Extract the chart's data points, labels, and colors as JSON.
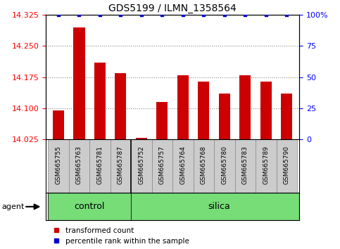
{
  "title": "GDS5199 / ILMN_1358564",
  "samples": [
    "GSM665755",
    "GSM665763",
    "GSM665781",
    "GSM665787",
    "GSM665752",
    "GSM665757",
    "GSM665764",
    "GSM665768",
    "GSM665780",
    "GSM665783",
    "GSM665789",
    "GSM665790"
  ],
  "red_values": [
    14.095,
    14.295,
    14.21,
    14.185,
    14.028,
    14.115,
    14.18,
    14.165,
    14.135,
    14.18,
    14.165,
    14.135
  ],
  "blue_values": [
    100,
    100,
    100,
    100,
    100,
    100,
    100,
    100,
    100,
    100,
    100,
    100
  ],
  "ylim_left": [
    14.025,
    14.325
  ],
  "ylim_right": [
    0,
    100
  ],
  "yticks_left": [
    14.025,
    14.1,
    14.175,
    14.25,
    14.325
  ],
  "yticks_right": [
    0,
    25,
    50,
    75,
    100
  ],
  "bar_color": "#cc0000",
  "dot_color": "#0000cc",
  "background_color": "#ffffff",
  "grid_color": "#888888",
  "tick_label_bg": "#cccccc",
  "group_divider": 4,
  "legend_items": [
    {
      "label": "transformed count",
      "color": "#cc0000"
    },
    {
      "label": "percentile rank within the sample",
      "color": "#0000cc"
    }
  ]
}
